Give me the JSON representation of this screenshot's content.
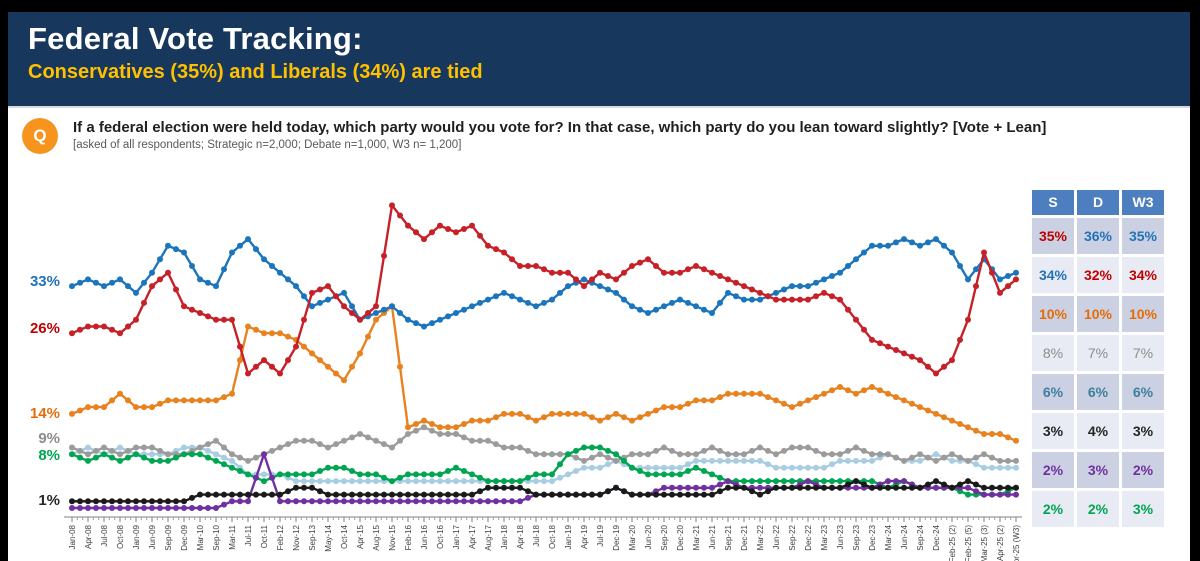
{
  "header": {
    "title": "Federal Vote Tracking:",
    "subtitle": "Conservatives (35%) and Liberals (34%) are tied"
  },
  "question": {
    "icon": "Q",
    "text_main": "If a federal election were held today, which party would you vote for? In that case, which party do you lean toward slightly?",
    "text_bold": "[Vote + Lean]",
    "note": "[asked of all respondents; Strategic n=2,000; Debate n=1,000, W3 n= 1,200]"
  },
  "summary_table": {
    "columns": [
      "S",
      "D",
      "W3"
    ],
    "header_bg": "#4D7EBF",
    "row_bg_dark": "#CBD1E2",
    "row_bg_light": "#E9EBF4",
    "rows": [
      {
        "muted": false,
        "cells": [
          {
            "text": "35%",
            "color": "#C00000"
          },
          {
            "text": "36%",
            "color": "#2272B8"
          },
          {
            "text": "35%",
            "color": "#2272B8"
          }
        ]
      },
      {
        "muted": false,
        "cells": [
          {
            "text": "34%",
            "color": "#2272B8"
          },
          {
            "text": "32%",
            "color": "#C00000"
          },
          {
            "text": "34%",
            "color": "#C00000"
          }
        ]
      },
      {
        "muted": false,
        "cells": [
          {
            "text": "10%",
            "color": "#E36C0A"
          },
          {
            "text": "10%",
            "color": "#E36C0A"
          },
          {
            "text": "10%",
            "color": "#E36C0A"
          }
        ]
      },
      {
        "muted": true,
        "cells": [
          {
            "text": "8%",
            "color": "#8C8C8C"
          },
          {
            "text": "7%",
            "color": "#8C8C8C"
          },
          {
            "text": "7%",
            "color": "#8C8C8C"
          }
        ]
      },
      {
        "muted": false,
        "cells": [
          {
            "text": "6%",
            "color": "#3E7F9D"
          },
          {
            "text": "6%",
            "color": "#3E7F9D"
          },
          {
            "text": "6%",
            "color": "#3E7F9D"
          }
        ]
      },
      {
        "muted": false,
        "cells": [
          {
            "text": "3%",
            "color": "#262626"
          },
          {
            "text": "4%",
            "color": "#262626"
          },
          {
            "text": "3%",
            "color": "#262626"
          }
        ]
      },
      {
        "muted": false,
        "cells": [
          {
            "text": "2%",
            "color": "#7030A0"
          },
          {
            "text": "3%",
            "color": "#7030A0"
          },
          {
            "text": "2%",
            "color": "#7030A0"
          }
        ]
      },
      {
        "muted": false,
        "cells": [
          {
            "text": "2%",
            "color": "#00A551"
          },
          {
            "text": "2%",
            "color": "#00A551"
          },
          {
            "text": "3%",
            "color": "#00A551"
          }
        ]
      }
    ]
  },
  "chart_data": {
    "type": "line",
    "grid": false,
    "legend": "none",
    "ylim": [
      0,
      47
    ],
    "y_axis_labels": [
      {
        "text": "33%",
        "pct": 33,
        "color": "#2272B8"
      },
      {
        "text": "26%",
        "pct": 26,
        "color": "#C00000"
      },
      {
        "text": "14%",
        "pct": 14,
        "color": "#E36C0A"
      },
      {
        "text": "9%",
        "pct": 9,
        "color": "#8C8C8C"
      },
      {
        "text": "8%",
        "pct": 8,
        "color": "#00A551"
      },
      {
        "text": "1%",
        "pct": 1,
        "color": "#262626"
      }
    ],
    "x_labels": [
      "Jan-08",
      "Apr-08",
      "Jul-08",
      "Oct-08",
      "Jan-09",
      "Jun-09",
      "Sep-09",
      "Dec-09",
      "Mar-10",
      "Sep-10",
      "Mar-11",
      "Jul-11",
      "Oct-11",
      "Feb-12",
      "Nov-12",
      "Sep-13",
      "May-14",
      "Oct-14",
      "Apr-15",
      "Aug-15",
      "Nov-15",
      "Feb-16",
      "Jun-16",
      "Oct-16",
      "Jan-17",
      "Apr-17",
      "Aug-17",
      "Jan-18",
      "Apr-18",
      "Jul-18",
      "Oct-18",
      "Jan-19",
      "Apr-19",
      "Jul-19",
      "Dec-19",
      "Mar-20",
      "Jun-20",
      "Sep-20",
      "Dec-20",
      "Mar-21",
      "Jun-21",
      "Sep-21",
      "Dec-21",
      "Mar-22",
      "Jun-22",
      "Sep-22",
      "Dec-22",
      "Mar-23",
      "Jun-23",
      "Sep-23",
      "Dec-23",
      "Mar-24",
      "Jun-24",
      "Sep-24",
      "Dec-24",
      "Feb-25 (2)",
      "Feb-25 (5)",
      "Mar-25 (3)",
      "Apr-25 (2)",
      "Apr-25 (W3)"
    ],
    "series": [
      {
        "name": "bloc-lightblue",
        "color": "#A8CCE2",
        "values": [
          8,
          9,
          8,
          9,
          8,
          8,
          8,
          9,
          9,
          8,
          7,
          5,
          5,
          5,
          4,
          4,
          4,
          4,
          4,
          4,
          4,
          4,
          4,
          4,
          4,
          4,
          4,
          4,
          4,
          4,
          4,
          5,
          6,
          6,
          7,
          6,
          6,
          6,
          6,
          7,
          7,
          7,
          7,
          7,
          6,
          6,
          6,
          6,
          7,
          7,
          7,
          8,
          7,
          7,
          8,
          7,
          7,
          6,
          6,
          6
        ]
      },
      {
        "name": "undecided-gray",
        "color": "#9B9B9B",
        "values": [
          9,
          8,
          9,
          8,
          9,
          9,
          8,
          8,
          9,
          10,
          8,
          7,
          8,
          9,
          10,
          10,
          9,
          10,
          11,
          10,
          9,
          11,
          12,
          11,
          11,
          10,
          10,
          9,
          9,
          8,
          8,
          8,
          7,
          8,
          7,
          8,
          8,
          9,
          8,
          8,
          9,
          8,
          8,
          9,
          8,
          9,
          9,
          8,
          8,
          9,
          8,
          8,
          7,
          8,
          7,
          8,
          7,
          8,
          7,
          7
        ]
      },
      {
        "name": "green",
        "color": "#00A551",
        "values": [
          8,
          7,
          8,
          7,
          8,
          7,
          7,
          8,
          8,
          7,
          6,
          5,
          4,
          5,
          5,
          5,
          6,
          6,
          5,
          5,
          4,
          5,
          5,
          5,
          6,
          5,
          4,
          4,
          4,
          5,
          5,
          8,
          9,
          9,
          8,
          6,
          5,
          5,
          5,
          6,
          5,
          4,
          4,
          4,
          4,
          4,
          4,
          4,
          4,
          4,
          4,
          3,
          4,
          3,
          3,
          3,
          2,
          2,
          2,
          3
        ]
      },
      {
        "name": "ppc-purple",
        "color": "#7030A0",
        "values": [
          0,
          0,
          0,
          0,
          0,
          0,
          0,
          0,
          0,
          0,
          1,
          1,
          8,
          1,
          1,
          1,
          1,
          1,
          1,
          1,
          1,
          1,
          1,
          1,
          1,
          1,
          1,
          1,
          1,
          2,
          2,
          2,
          2,
          2,
          3,
          2,
          2,
          3,
          3,
          3,
          3,
          4,
          3,
          3,
          3,
          3,
          4,
          3,
          3,
          3,
          3,
          4,
          4,
          3,
          3,
          3,
          3,
          2,
          2,
          2
        ]
      },
      {
        "name": "other-black",
        "color": "#1A1A1A",
        "values": [
          1,
          1,
          1,
          1,
          1,
          1,
          1,
          1,
          2,
          2,
          2,
          2,
          2,
          2,
          3,
          3,
          2,
          2,
          2,
          2,
          2,
          2,
          2,
          2,
          2,
          2,
          3,
          3,
          3,
          2,
          2,
          2,
          2,
          2,
          3,
          2,
          2,
          2,
          2,
          2,
          2,
          3,
          3,
          2,
          3,
          3,
          3,
          3,
          3,
          4,
          3,
          3,
          3,
          3,
          4,
          3,
          4,
          3,
          3,
          3
        ]
      },
      {
        "name": "ndp-orange",
        "color": "#E8821E",
        "values": [
          14,
          15,
          15,
          17,
          15,
          15,
          16,
          16,
          16,
          16,
          17,
          27,
          26,
          26,
          25,
          23,
          21,
          19,
          23,
          28,
          30,
          12,
          13,
          12,
          12,
          13,
          13,
          14,
          14,
          13,
          14,
          14,
          14,
          13,
          14,
          13,
          14,
          15,
          15,
          16,
          16,
          17,
          17,
          17,
          16,
          15,
          16,
          17,
          18,
          17,
          18,
          17,
          16,
          15,
          14,
          13,
          12,
          11,
          11,
          10
        ]
      },
      {
        "name": "conservative-blue",
        "color": "#1B75BC",
        "values": [
          33,
          34,
          33,
          34,
          32,
          35,
          39,
          38,
          34,
          33,
          38,
          40,
          37,
          35,
          33,
          30,
          31,
          32,
          28,
          29,
          30,
          28,
          27,
          28,
          29,
          30,
          31,
          32,
          31,
          30,
          31,
          33,
          34,
          33,
          32,
          30,
          29,
          30,
          31,
          30,
          29,
          32,
          31,
          31,
          32,
          33,
          33,
          34,
          35,
          37,
          39,
          39,
          40,
          39,
          40,
          38,
          34,
          37,
          34,
          35
        ]
      },
      {
        "name": "liberal-red",
        "color": "#C62128",
        "values": [
          26,
          27,
          27,
          26,
          28,
          33,
          35,
          30,
          29,
          28,
          28,
          20,
          22,
          20,
          24,
          32,
          33,
          30,
          28,
          30,
          45,
          42,
          40,
          42,
          41,
          42,
          39,
          38,
          36,
          36,
          35,
          35,
          33,
          35,
          34,
          36,
          37,
          35,
          35,
          36,
          35,
          34,
          33,
          32,
          31,
          31,
          31,
          32,
          31,
          28,
          25,
          24,
          23,
          22,
          20,
          22,
          28,
          38,
          32,
          34
        ]
      }
    ]
  }
}
